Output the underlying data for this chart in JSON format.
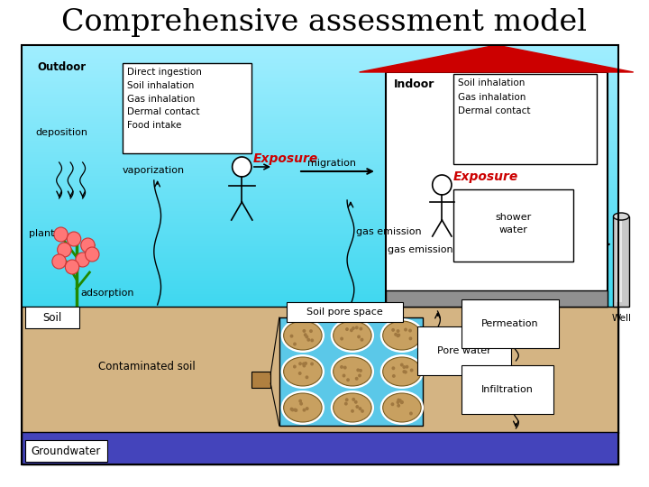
{
  "title": "Comprehensive assessment model",
  "title_fontsize": 24,
  "bg_color": "#ffffff",
  "sky_color_bottom": "#40d8f0",
  "sky_color_top": "#a0eeff",
  "soil_color": "#d4b483",
  "groundwater_color": "#4444bb",
  "outdoor_label": "Outdoor",
  "indoor_label": "Indoor",
  "outdoor_box_text": "Direct ingestion\nSoil inhalation\nGas inhalation\nDermal contact\nFood intake",
  "indoor_box_text": "Soil inhalation\nGas inhalation\nDermal contact",
  "exposure_color": "#cc0000",
  "soil_label": "Soil",
  "soil_pore_label": "Soil pore space",
  "contaminated_label": "Contaminated soil",
  "groundwater_label": "Groundwater",
  "permeation_label": "Permeation",
  "pore_water_label": "Pore water",
  "infiltration_label": "Infiltration",
  "well_label": "Well",
  "deposition_label": "deposition",
  "plant_label": "plant",
  "adsorption_label": "adsorption",
  "vaporization_label": "vaporization",
  "migration_label": "migration",
  "gas_emission_label": "gas emission",
  "shower_water_label": "shower\nwater",
  "exposure_label": "Exposure",
  "roof_color": "#cc0000",
  "wall_color": "#ffffff",
  "floor_color": "#909090",
  "well_color": "#b0b0b0",
  "pore_bg_color": "#5bc8e8",
  "particle_color": "#c8a060",
  "particle_edge_color": "#7a5c20"
}
